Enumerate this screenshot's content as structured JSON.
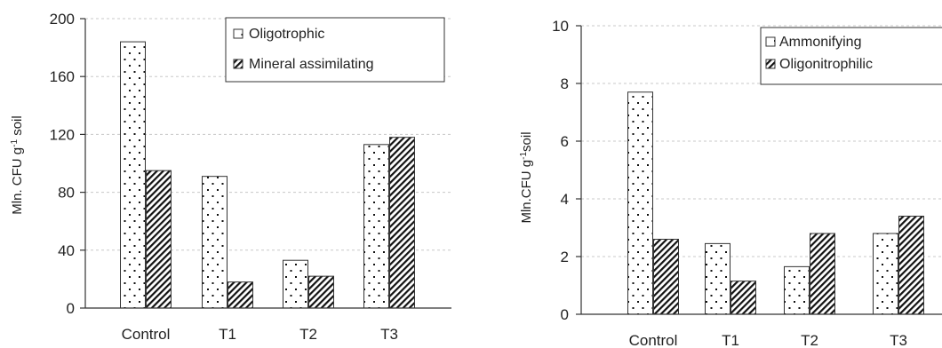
{
  "chart_data": [
    {
      "type": "bar",
      "categories": [
        "Control",
        "T1",
        "T2",
        "T3"
      ],
      "series": [
        {
          "name": "Oligotrophic",
          "values": [
            184,
            91,
            33,
            113
          ],
          "pattern": "dots"
        },
        {
          "name": "Mineral assimilating",
          "values": [
            95,
            18,
            22,
            118
          ],
          "pattern": "hatch"
        }
      ],
      "ylabel": "Mln. CFU g",
      "ylabel_sup": "-1",
      "ylabel_tail": " soil",
      "ylim": [
        0,
        200
      ],
      "yticks": [
        0,
        40,
        80,
        120,
        160,
        200
      ],
      "grid": true,
      "legend": "top-right"
    },
    {
      "type": "bar",
      "categories": [
        "Control",
        "T1",
        "T2",
        "T3"
      ],
      "series": [
        {
          "name": "Ammonifying",
          "values": [
            7.7,
            2.45,
            1.65,
            2.8
          ],
          "pattern": "dots"
        },
        {
          "name": "Oligonitrophilic",
          "values": [
            2.6,
            1.15,
            2.8,
            3.4
          ],
          "pattern": "hatch"
        }
      ],
      "ylabel": "Mln.CFU g",
      "ylabel_sup": "-1",
      "ylabel_tail": "soil",
      "ylim": [
        0,
        10
      ],
      "yticks": [
        0,
        2,
        4,
        6,
        8,
        10
      ],
      "grid": true,
      "legend": "top-right"
    }
  ],
  "colors": {
    "bar_fill": "#ffffff",
    "bar_stroke": "#333333",
    "grid": "#c8c8c8",
    "axis": "#333333"
  }
}
